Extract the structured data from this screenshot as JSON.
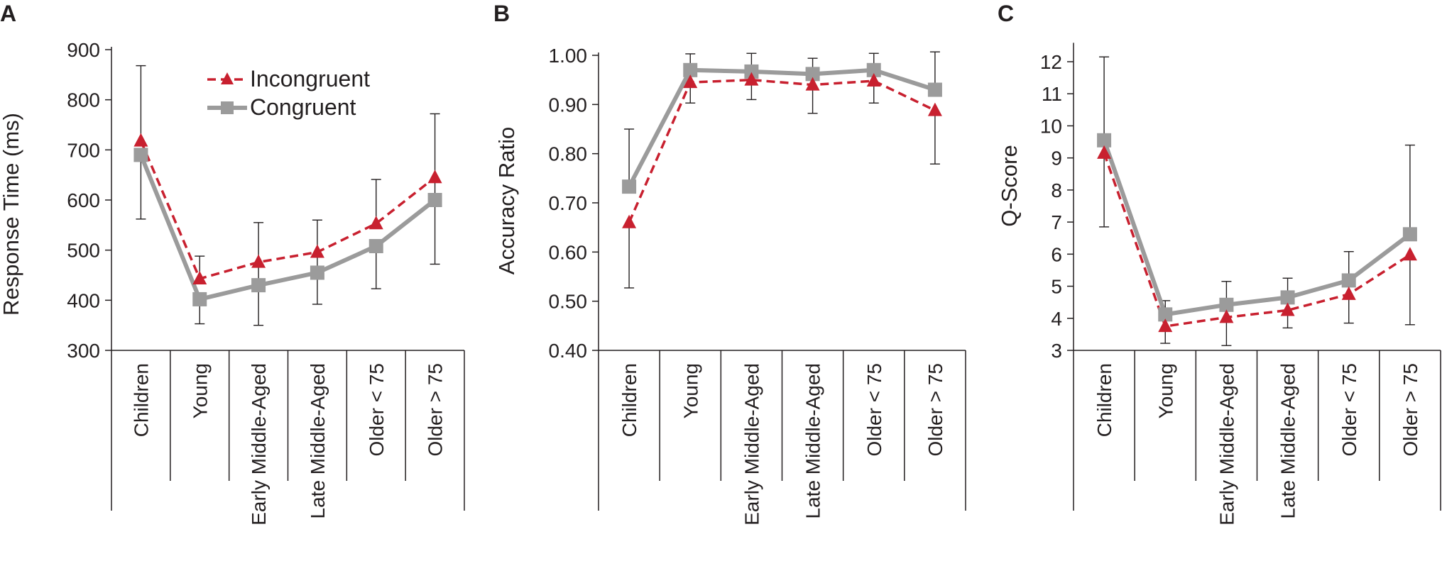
{
  "colors": {
    "incongruent": "#c8202f",
    "congruent": "#9b9b9b",
    "axis": "#231f20",
    "error_bar": "#231f20"
  },
  "legend": {
    "incongruent_label": "Incongruent",
    "congruent_label": "Congruent",
    "incongruent_marker": "triangle",
    "congruent_marker": "square"
  },
  "chart_data": [
    {
      "panel": "A",
      "type": "line",
      "title": "",
      "xlabel": "",
      "ylabel": "Response Time (ms)",
      "ylim": [
        300,
        900
      ],
      "yticks": [
        300,
        400,
        500,
        600,
        700,
        800,
        900
      ],
      "ytick_labels": [
        "300",
        "400",
        "500",
        "600",
        "700",
        "800",
        "900"
      ],
      "categories": [
        "Children",
        "Young",
        "Early Middle-Aged",
        "Late Middle-Aged",
        "Older < 75",
        "Older > 75"
      ],
      "legend_position": "top-center",
      "series": [
        {
          "name": "Incongruent",
          "style": "dashed",
          "marker": "triangle",
          "values": [
            718,
            443,
            476,
            496,
            553,
            645
          ],
          "err_low": [
            null,
            null,
            350,
            392,
            null,
            472
          ],
          "err_high": [
            868,
            488,
            555,
            560,
            641,
            772
          ]
        },
        {
          "name": "Congruent",
          "style": "solid",
          "marker": "square",
          "values": [
            690,
            402,
            430,
            455,
            508,
            600
          ],
          "err_low": [
            562,
            353,
            null,
            null,
            423,
            null
          ],
          "err_high": [
            null,
            null,
            null,
            null,
            null,
            null
          ]
        }
      ]
    },
    {
      "panel": "B",
      "type": "line",
      "title": "",
      "xlabel": "",
      "ylabel": "Accuracy Ratio",
      "ylim": [
        0.4,
        1.0
      ],
      "yticks": [
        0.4,
        0.5,
        0.6,
        0.7,
        0.8,
        0.9,
        1.0
      ],
      "ytick_labels": [
        "0.40",
        "0.50",
        "0.60",
        "0.70",
        "0.80",
        "0.90",
        "1.00"
      ],
      "categories": [
        "Children",
        "Young",
        "Early Middle-Aged",
        "Late Middle-Aged",
        "Older < 75",
        "Older > 75"
      ],
      "series": [
        {
          "name": "Incongruent",
          "style": "dashed",
          "marker": "triangle",
          "values": [
            0.66,
            0.945,
            0.95,
            0.94,
            0.948,
            0.888
          ],
          "err_low": [
            0.527,
            0.903,
            0.91,
            0.882,
            0.903,
            0.779
          ],
          "err_high": [
            null,
            null,
            null,
            null,
            null,
            null
          ]
        },
        {
          "name": "Congruent",
          "style": "solid",
          "marker": "square",
          "values": [
            0.733,
            0.97,
            0.967,
            0.962,
            0.97,
            0.93
          ],
          "err_low": [
            null,
            null,
            null,
            null,
            null,
            null
          ],
          "err_high": [
            0.85,
            1.003,
            1.004,
            0.994,
            1.004,
            1.007
          ]
        }
      ]
    },
    {
      "panel": "C",
      "type": "line",
      "title": "",
      "xlabel": "",
      "ylabel": "Q-Score",
      "ylim": [
        3,
        12.5
      ],
      "yticks": [
        3,
        4,
        5,
        6,
        7,
        8,
        9,
        10,
        11,
        12
      ],
      "ytick_labels": [
        "3",
        "4",
        "5",
        "6",
        "7",
        "8",
        "9",
        "10",
        "11",
        "12"
      ],
      "categories": [
        "Children",
        "Young",
        "Early Middle-Aged",
        "Late Middle-Aged",
        "Older < 75",
        "Older > 75"
      ],
      "series": [
        {
          "name": "Incongruent",
          "style": "dashed",
          "marker": "triangle",
          "values": [
            9.15,
            3.75,
            4.03,
            4.25,
            4.75,
            5.98
          ],
          "err_low": [
            6.85,
            3.22,
            3.15,
            3.7,
            3.85,
            3.8
          ],
          "err_high": [
            null,
            null,
            null,
            null,
            null,
            null
          ]
        },
        {
          "name": "Congruent",
          "style": "solid",
          "marker": "square",
          "values": [
            9.55,
            4.12,
            4.42,
            4.65,
            5.18,
            6.62
          ],
          "err_low": [
            null,
            null,
            null,
            null,
            null,
            null
          ],
          "err_high": [
            12.15,
            4.55,
            5.15,
            5.25,
            6.08,
            9.4
          ]
        }
      ]
    }
  ]
}
